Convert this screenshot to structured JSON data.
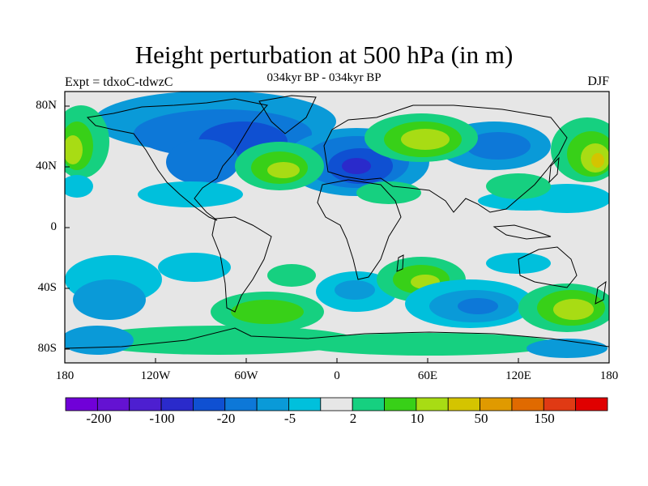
{
  "title": "Height perturbation at 500 hPa (in m)",
  "subtitle": "034kyr BP - 034kyr BP",
  "experiment_label": "Expt = tdxoC-tdwzC",
  "season": "DJF",
  "map": {
    "projection": "cylindrical equidistant",
    "lon_range": [
      -180,
      180
    ],
    "lat_range": [
      -90,
      90
    ],
    "x_ticks": [
      "180",
      "120W",
      "60W",
      "0",
      "60E",
      "120E",
      "180"
    ],
    "y_ticks": [
      "80N",
      "40N",
      "0",
      "40S",
      "80S"
    ],
    "background_color": "#e6e6e6",
    "coastline_color": "#000000"
  },
  "colorbar": {
    "colors": [
      "#7000d8",
      "#6412d2",
      "#4d1fd0",
      "#2a2acb",
      "#0f50d2",
      "#0d78d8",
      "#0a9ad8",
      "#00c0dc",
      "#e6e6e6",
      "#16d080",
      "#38d018",
      "#a8dc14",
      "#d4c400",
      "#e09a00",
      "#e06a00",
      "#e03a14",
      "#e00000"
    ],
    "labels": [
      "-200",
      "-100",
      "-20",
      "-5",
      "2",
      "10",
      "50",
      "150"
    ]
  }
}
